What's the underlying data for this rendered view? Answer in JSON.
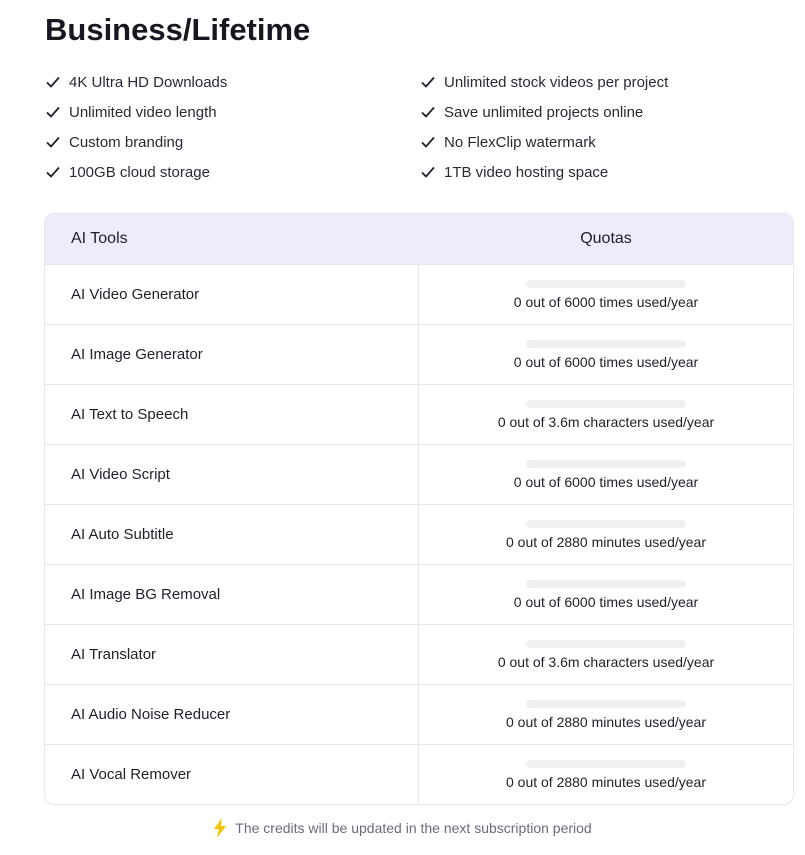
{
  "title": "Business/Lifetime",
  "features": [
    "4K Ultra HD Downloads",
    "Unlimited stock videos per project",
    "Unlimited video length",
    "Save unlimited projects online",
    "Custom branding",
    "No FlexClip watermark",
    "100GB cloud storage",
    "1TB video hosting space"
  ],
  "table": {
    "headers": [
      "AI Tools",
      "Quotas"
    ],
    "rows": [
      {
        "tool": "AI Video Generator",
        "quota": "0 out of 6000 times used/year",
        "used_fraction": 0
      },
      {
        "tool": "AI Image Generator",
        "quota": "0 out of 6000 times used/year",
        "used_fraction": 0
      },
      {
        "tool": "AI Text to Speech",
        "quota": "0 out of 3.6m characters used/year",
        "used_fraction": 0
      },
      {
        "tool": "AI Video Script",
        "quota": "0 out of 6000 times used/year",
        "used_fraction": 0
      },
      {
        "tool": "AI Auto Subtitle",
        "quota": "0 out of 2880 minutes used/year",
        "used_fraction": 0
      },
      {
        "tool": "AI Image BG Removal",
        "quota": "0 out of 6000 times used/year",
        "used_fraction": 0
      },
      {
        "tool": "AI Translator",
        "quota": "0 out of 3.6m characters used/year",
        "used_fraction": 0
      },
      {
        "tool": "AI Audio Noise Reducer",
        "quota": "0 out of 2880 minutes used/year",
        "used_fraction": 0
      },
      {
        "tool": "AI Vocal Remover",
        "quota": "0 out of 2880 minutes used/year",
        "used_fraction": 0
      }
    ]
  },
  "note": {
    "icon": "lightning-icon",
    "text": "The credits will be updated in the next subscription period",
    "icon_color": "#f5c400"
  },
  "colors": {
    "header_bg": "#eeebfb"
  }
}
